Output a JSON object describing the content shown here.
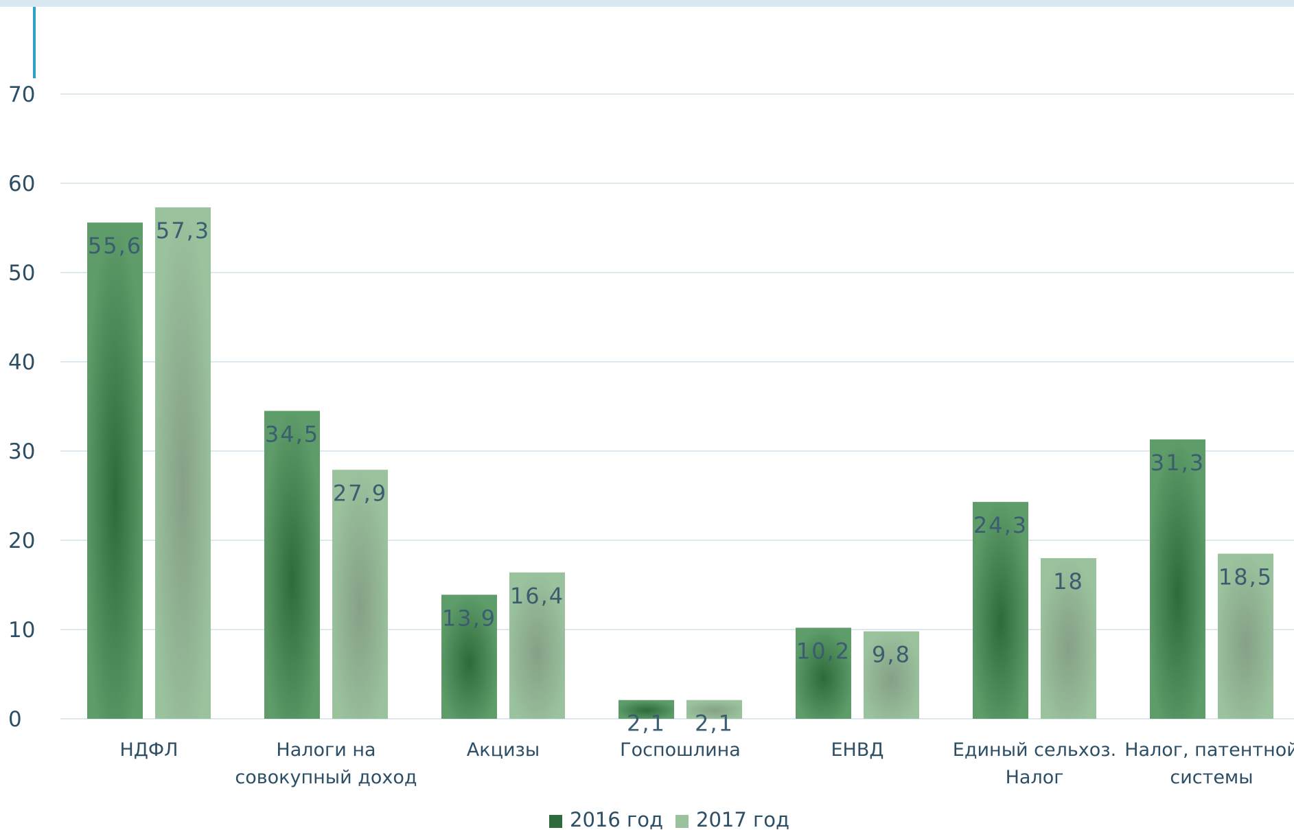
{
  "chart_data": {
    "type": "bar",
    "categories": [
      [
        "НДФЛ"
      ],
      [
        "Налоги на",
        "совокупный доход"
      ],
      [
        "Акцизы"
      ],
      [
        "Госпошлина"
      ],
      [
        "ЕНВД"
      ],
      [
        "Единый сельхоз.",
        "Налог"
      ],
      [
        "Налог, патентной",
        "системы"
      ]
    ],
    "series": [
      {
        "name": "2016 год",
        "values": [
          55.6,
          34.5,
          13.9,
          2.1,
          10.2,
          24.3,
          31.3
        ]
      },
      {
        "name": "2017 год",
        "values": [
          57.3,
          27.9,
          16.4,
          2.1,
          9.8,
          18,
          18.5
        ]
      }
    ],
    "data_labels": [
      [
        "55,6",
        "34,5",
        "13,9",
        "2,1",
        "10,2",
        "24,3",
        "31,3"
      ],
      [
        "57,3",
        "27,9",
        "16,4",
        "2,1",
        "9,8",
        "18",
        "18,5"
      ]
    ],
    "y_ticks": [
      "0",
      "10",
      "20",
      "30",
      "40",
      "50",
      "60",
      "70"
    ],
    "ylim": [
      0,
      70
    ],
    "grid": true,
    "legend_position": "bottom",
    "colors": {
      "series_2016_edge": "#5e9c6a",
      "series_2016_center": "#2e6b3c",
      "series_2017_edge": "#9ac29d",
      "series_2017_center": "#86a087",
      "grid": "#dde8ee",
      "text": "#2d4f66"
    }
  }
}
